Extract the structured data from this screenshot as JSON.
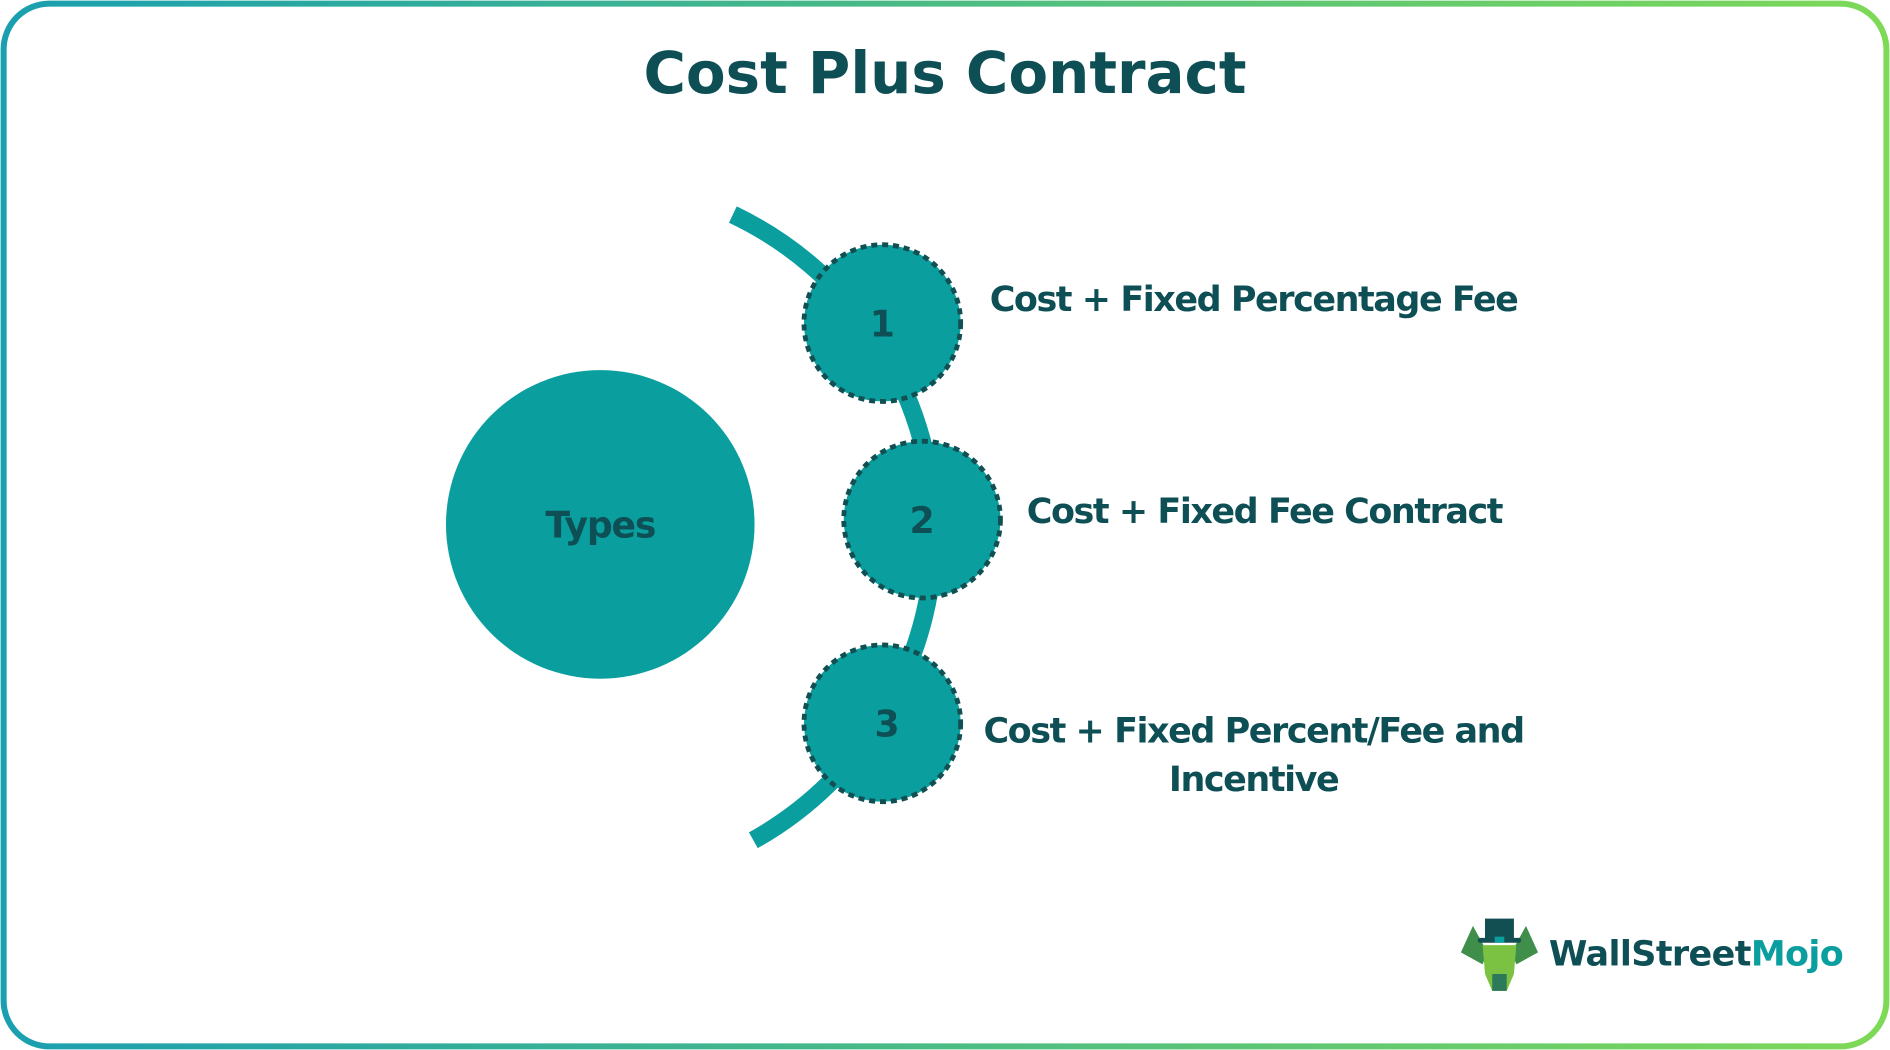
{
  "title": "Cost Plus Contract",
  "center_label": "Types",
  "items": [
    {
      "number": "1",
      "lines": [
        "Cost + Fixed Percentage Fee"
      ]
    },
    {
      "number": "2",
      "lines": [
        "Cost + Fixed Fee Contract"
      ]
    },
    {
      "number": "3",
      "lines": [
        "Cost + Fixed Percent/Fee and",
        "Incentive"
      ]
    }
  ],
  "logo": {
    "part1": "WallStreet",
    "part2": "Mojo"
  },
  "colors": {
    "teal": "#0a9e9e",
    "dark_text": "#0d4f55",
    "border_start": "#1a9fb0",
    "border_end": "#7ed957"
  }
}
